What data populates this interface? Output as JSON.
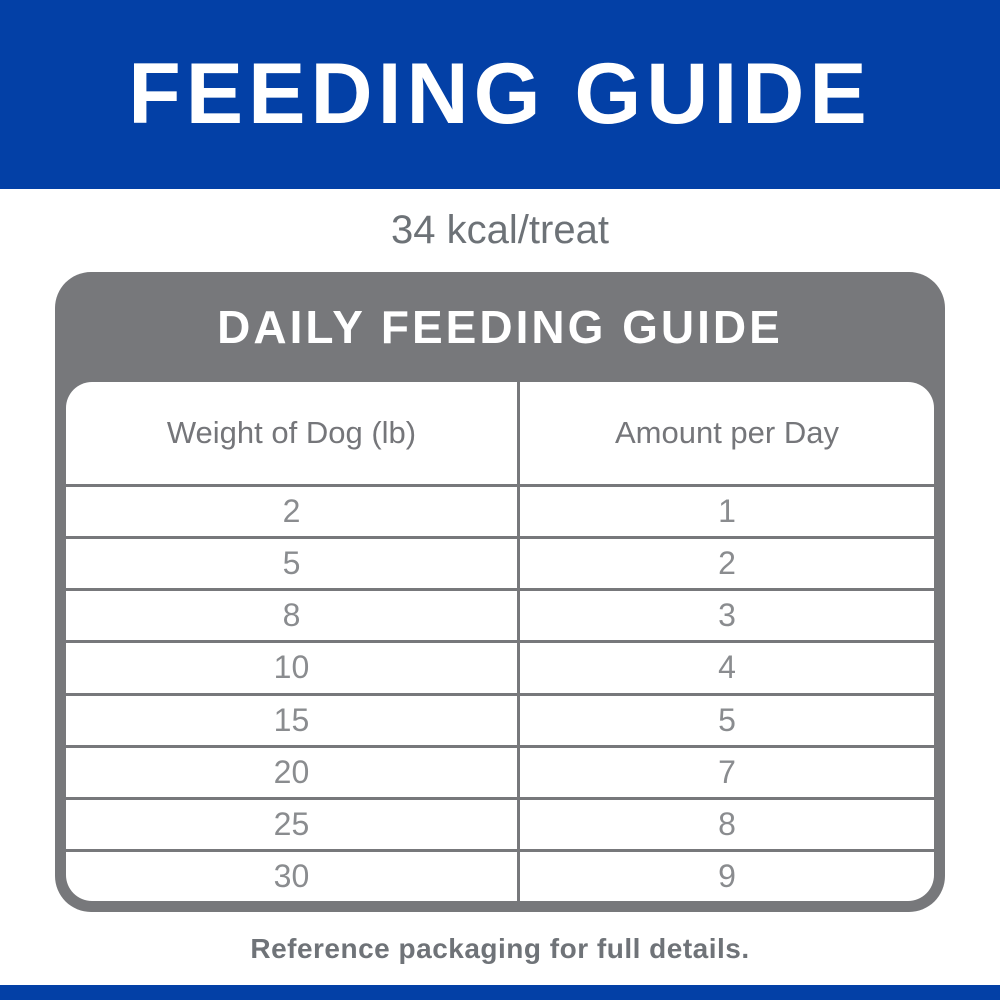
{
  "colors": {
    "brand_blue": "#0340A6",
    "card_gray": "#77787B",
    "note_text_gray": "#6D7277",
    "cell_text_gray": "#8A8C8F"
  },
  "banner": {
    "title": "FEEDING GUIDE"
  },
  "calorie_note": "34 kcal/treat",
  "table": {
    "title": "DAILY FEEDING GUIDE",
    "columns": [
      "Weight of Dog (lb)",
      "Amount per Day"
    ],
    "rows": [
      [
        "2",
        "1"
      ],
      [
        "5",
        "2"
      ],
      [
        "8",
        "3"
      ],
      [
        "10",
        "4"
      ],
      [
        "15",
        "5"
      ],
      [
        "20",
        "7"
      ],
      [
        "25",
        "8"
      ],
      [
        "30",
        "9"
      ]
    ]
  },
  "footer": {
    "note": "Reference packaging for full details."
  },
  "chart_data": {
    "type": "table",
    "title": "DAILY FEEDING GUIDE",
    "subtitle": "34 kcal/treat",
    "columns": [
      "Weight of Dog (lb)",
      "Amount per Day"
    ],
    "rows": [
      [
        2,
        1
      ],
      [
        5,
        2
      ],
      [
        8,
        3
      ],
      [
        10,
        4
      ],
      [
        15,
        5
      ],
      [
        20,
        7
      ],
      [
        25,
        8
      ],
      [
        30,
        9
      ]
    ],
    "note": "Reference packaging for full details."
  }
}
